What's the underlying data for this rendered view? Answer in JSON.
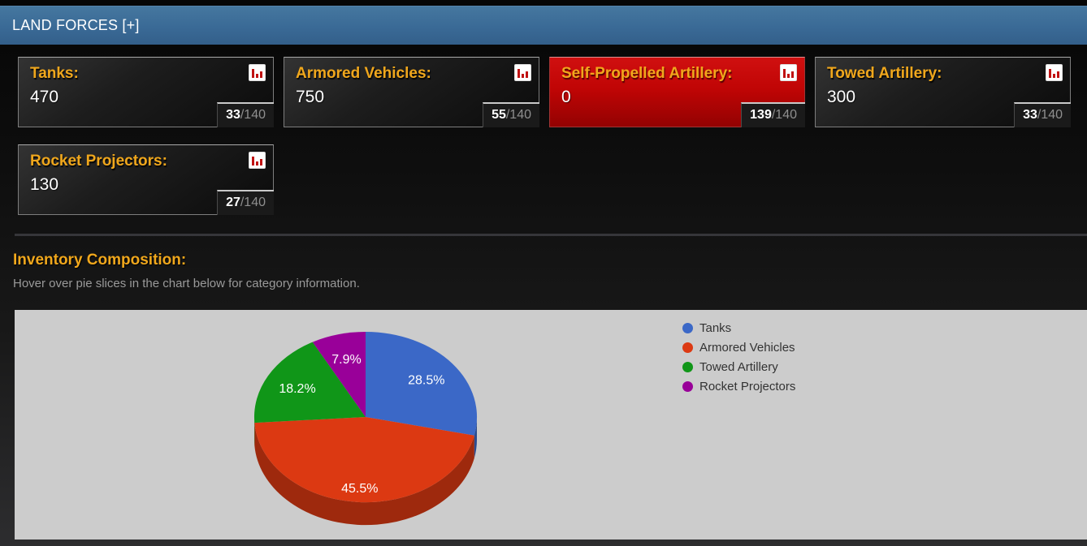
{
  "header": {
    "title": "LAND FORCES [+]"
  },
  "stats": [
    {
      "label": "Tanks:",
      "value": "470",
      "rank": "33",
      "rank_total": "/140",
      "highlight": false
    },
    {
      "label": "Armored Vehicles:",
      "value": "750",
      "rank": "55",
      "rank_total": "/140",
      "highlight": false
    },
    {
      "label": "Self-Propelled Artillery:",
      "value": "0",
      "rank": "139",
      "rank_total": "/140",
      "highlight": true
    },
    {
      "label": "Towed Artillery:",
      "value": "300",
      "rank": "33",
      "rank_total": "/140",
      "highlight": false
    },
    {
      "label": "Rocket Projectors:",
      "value": "130",
      "rank": "27",
      "rank_total": "/140",
      "highlight": false
    }
  ],
  "section": {
    "title": "Inventory Composition:",
    "subtitle": "Hover over pie slices in the chart below for category information."
  },
  "chart_data": {
    "type": "pie",
    "is3d": true,
    "title": "Inventory Composition",
    "labels": [
      "Tanks",
      "Armored Vehicles",
      "Towed Artillery",
      "Rocket Projectors"
    ],
    "values": [
      470,
      750,
      300,
      130
    ],
    "values_percent": [
      28.5,
      45.5,
      18.2,
      7.9
    ],
    "slice_labels": [
      "28.5%",
      "45.5%",
      "18.2%",
      "7.9%"
    ],
    "colors": [
      "#3b68c7",
      "#dc3912",
      "#109618",
      "#990099"
    ],
    "legend_position": "right",
    "background": "#cccccc"
  },
  "colors": {
    "accent_gold": "#f0a71c",
    "header_blue": "#3a6a96",
    "highlight_red": "#c00505",
    "card_dark": "#1d1d1d",
    "chart_background": "#cccccc"
  }
}
